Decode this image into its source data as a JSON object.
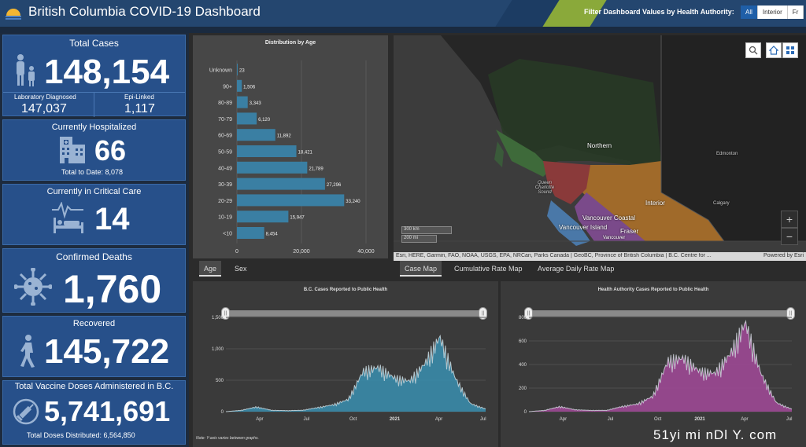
{
  "header": {
    "title": "British Columbia COVID-19 Dashboard",
    "filter_label": "Filter Dashboard Values by Health Authority:",
    "filter_options": [
      "All",
      "Interior",
      "Fr"
    ]
  },
  "cards": {
    "total_cases": {
      "title": "Total Cases",
      "value": "148,154",
      "lab_label": "Laboratory Diagnosed",
      "lab_value": "147,037",
      "epi_label": "Epi-Linked",
      "epi_value": "1,117"
    },
    "hospitalized": {
      "title": "Currently Hospitalized",
      "value": "66",
      "sub": "Total to Date: 8,078"
    },
    "critical": {
      "title": "Currently in Critical Care",
      "value": "14"
    },
    "deaths": {
      "title": "Confirmed Deaths",
      "value": "1,760"
    },
    "recovered": {
      "title": "Recovered",
      "value": "145,722"
    },
    "vaccine": {
      "title": "Total Vaccine Doses Administered in B.C.",
      "value": "5,741,691",
      "sub": "Total Doses Distributed: 6,564,850"
    }
  },
  "age_chart": {
    "title": "Distribution by Age",
    "tabs": [
      "Age",
      "Sex"
    ],
    "active_tab": "Age"
  },
  "map": {
    "tabs": [
      "Case Map",
      "Cumulative Rate Map",
      "Average Daily Rate Map"
    ],
    "active_tab": "Case Map",
    "labels": {
      "northern": "Northern",
      "interior": "Interior",
      "vancouver_coastal": "Vancouver Coastal",
      "vancouver_island": "Vancouver Island",
      "fraser": "Fraser",
      "vancouver": "Vancouver",
      "edmonton": "Edmonton",
      "calgary": "Calgary",
      "queen_charlotte": "Queen Charlotte Sound"
    },
    "scale_km": "300 km",
    "scale_mi": "200 mi",
    "attribution": "Esri, HERE, Garmin, FAO, NOAA, USGS, EPA, NRCan, Parks Canada | GeoBC, Province of British Columbia | B.C. Centre for ...",
    "powered_by": "Powered by Esri",
    "zoom_in": "+",
    "zoom_out": "−"
  },
  "bc_chart": {
    "title": "B.C. Cases Reported to Public Health",
    "note": "Note: Y-axis varies between graphs.",
    "y_ticks": [
      "1,500",
      "1,000",
      "500",
      "0"
    ],
    "x_ticks": [
      "Apr",
      "Jul",
      "Oct",
      "2021",
      "Apr",
      "Jul"
    ]
  },
  "ha_chart": {
    "title": "Health Authority Cases Reported to Public Health",
    "y_ticks": [
      "800",
      "600",
      "400",
      "200",
      "0"
    ],
    "x_ticks": [
      "Apr",
      "Jul",
      "Oct",
      "2021",
      "Apr",
      "Jul"
    ]
  },
  "watermark": "51yi mi nDl Y. com",
  "chart_data": [
    {
      "type": "bar",
      "title": "Distribution by Age",
      "categories": [
        "Unknown",
        "90+",
        "80-89",
        "70-79",
        "60-69",
        "50-59",
        "40-49",
        "30-39",
        "20-29",
        "10-19",
        "<10"
      ],
      "values": [
        23,
        1506,
        3343,
        6120,
        11892,
        18421,
        21789,
        27296,
        33240,
        15947,
        8454
      ],
      "xlim": [
        0,
        40000
      ],
      "x_ticks": [
        "0",
        "20,000",
        "40,000"
      ],
      "orientation": "horizontal",
      "color": "#3a7fa3"
    },
    {
      "type": "area",
      "title": "B.C. Cases Reported to Public Health",
      "x": [
        "2020-02",
        "2020-03",
        "2020-04",
        "2020-05",
        "2020-06",
        "2020-07",
        "2020-08",
        "2020-09",
        "2020-10",
        "2020-11",
        "2020-12",
        "2021-01",
        "2021-02",
        "2021-03",
        "2021-04",
        "2021-05",
        "2021-06",
        "2021-07"
      ],
      "values": [
        0,
        20,
        70,
        20,
        15,
        20,
        60,
        100,
        180,
        600,
        650,
        500,
        450,
        700,
        1100,
        500,
        120,
        40
      ],
      "ylim": [
        0,
        1500
      ],
      "color": "#3a8fb0"
    },
    {
      "type": "area",
      "title": "Health Authority Cases Reported to Public Health",
      "x": [
        "2020-02",
        "2020-03",
        "2020-04",
        "2020-05",
        "2020-06",
        "2020-07",
        "2020-08",
        "2020-09",
        "2020-10",
        "2020-11",
        "2020-12",
        "2021-01",
        "2021-02",
        "2021-03",
        "2021-04",
        "2021-05",
        "2021-06",
        "2021-07"
      ],
      "values": [
        0,
        10,
        40,
        15,
        10,
        10,
        40,
        60,
        120,
        400,
        420,
        320,
        300,
        450,
        700,
        300,
        70,
        20
      ],
      "ylim": [
        0,
        800
      ],
      "color": "#a34a9a"
    }
  ]
}
